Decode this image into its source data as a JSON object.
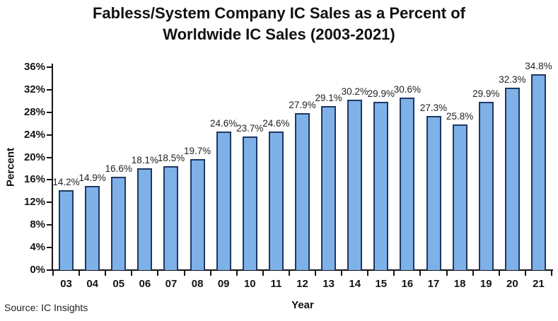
{
  "title": {
    "line1": "Fabless/System Company IC Sales as a Percent of",
    "line2": "Worldwide IC Sales (2003-2021)"
  },
  "source": "Source: IC Insights",
  "chart_data": {
    "type": "bar",
    "title": "Fabless/System Company IC Sales as a Percent of Worldwide IC Sales (2003-2021)",
    "xlabel": "Year",
    "ylabel": "Percent",
    "categories": [
      "03",
      "04",
      "05",
      "06",
      "07",
      "08",
      "09",
      "10",
      "11",
      "12",
      "13",
      "14",
      "15",
      "16",
      "17",
      "18",
      "19",
      "20",
      "21"
    ],
    "values": [
      14.2,
      14.9,
      16.6,
      18.1,
      18.5,
      19.7,
      24.6,
      23.7,
      24.6,
      27.9,
      29.1,
      30.2,
      29.9,
      30.6,
      27.3,
      25.8,
      29.9,
      32.3,
      34.8
    ],
    "data_labels": [
      "14.2%",
      "14.9%",
      "16.6%",
      "18.1%",
      "18.5%",
      "19.7%",
      "24.6%",
      "23.7%",
      "24.6%",
      "27.9%",
      "29.1%",
      "30.2%",
      "29.9%",
      "30.6%",
      "27.3%",
      "25.8%",
      "29.9%",
      "32.3%",
      "34.8%"
    ],
    "ylim": [
      0,
      36
    ],
    "ytick_step": 4,
    "ytick_labels": [
      "0%",
      "4%",
      "8%",
      "12%",
      "16%",
      "20%",
      "24%",
      "28%",
      "32%",
      "36%"
    ],
    "grid": false,
    "legend": "none",
    "colors": {
      "bar_fill": "#7EB1E8",
      "bar_border": "#1F3864",
      "axis": "#141414",
      "text": "#111111"
    }
  }
}
